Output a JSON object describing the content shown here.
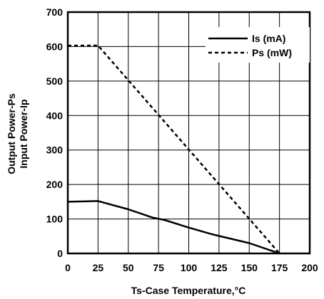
{
  "chart_data": {
    "type": "line",
    "xlabel": "Ts-Case Temperature,°C",
    "ylabel_lines": [
      "Output Power-Ps",
      "Input Power-Ip"
    ],
    "xlim": [
      0,
      200
    ],
    "ylim": [
      0,
      700
    ],
    "x_ticks": [
      0,
      25,
      50,
      75,
      100,
      125,
      150,
      175,
      200
    ],
    "y_ticks": [
      0,
      100,
      200,
      300,
      400,
      500,
      600,
      700
    ],
    "grid": true,
    "legend_position": "top-right",
    "series": [
      {
        "name": "Is (mA)",
        "style": "solid",
        "x": [
          0,
          25,
          50,
          70,
          80,
          100,
          120,
          150,
          175
        ],
        "y": [
          150,
          152,
          128,
          104,
          97,
          75,
          55,
          30,
          0
        ]
      },
      {
        "name": "Ps (mW)",
        "style": "dashed",
        "x": [
          0,
          25,
          175
        ],
        "y": [
          603,
          603,
          0
        ]
      }
    ]
  }
}
